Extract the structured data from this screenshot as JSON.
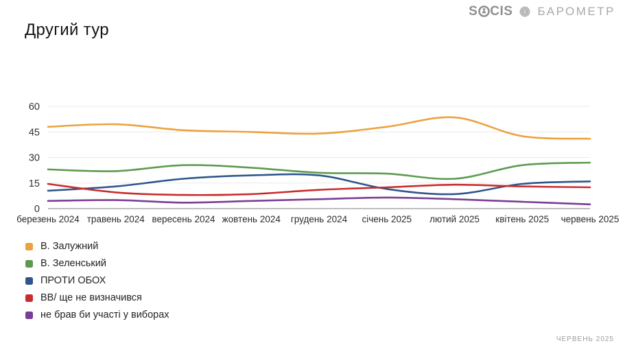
{
  "header": {
    "logo_part1": "S",
    "logo_part2": "CIS",
    "logo_full": "SOCIS",
    "barometer": "БАРОМЕТР",
    "socis_color": "#8f8f8f",
    "barometer_color": "#a9a9a9"
  },
  "title": "Другий тур",
  "footer": {
    "note": "ЧЕРВЕНЬ 2025"
  },
  "icons": {
    "person-in-circle-icon": "stylized person inside ring (letter O of SOCIS)",
    "coin-icon": "round gray coin emblem"
  },
  "chart_data": {
    "type": "line",
    "smooth": true,
    "title": "Другий тур",
    "xlabel": "",
    "ylabel": "",
    "ylim": [
      0,
      60
    ],
    "y_ticks": [
      0,
      15,
      30,
      45,
      60
    ],
    "grid": true,
    "grid_color": "#e8e8e8",
    "axis_color": "#7d7d7d",
    "legend_position": "bottom-left",
    "categories": [
      "березень 2024",
      "травень 2024",
      "вересень 2024",
      "жовтень 2024",
      "грудень 2024",
      "січень 2025",
      "лютий 2025",
      "квітень 2025",
      "червень 2025"
    ],
    "series": [
      {
        "name": "В. Залужний",
        "color": "#eca23d",
        "values": [
          48,
          49.5,
          46,
          45,
          44,
          48,
          53.5,
          42.5,
          41
        ]
      },
      {
        "name": "В. Зеленський",
        "color": "#5c9b4f",
        "values": [
          23,
          22,
          25.5,
          24,
          21,
          20.5,
          17.5,
          25.5,
          27
        ]
      },
      {
        "name": "ПРОТИ ОБОХ",
        "color": "#2f568c",
        "values": [
          10.5,
          13,
          17.5,
          19.5,
          19.5,
          11.5,
          8.5,
          14.5,
          16
        ]
      },
      {
        "name": "ВВ/ ще не визначився",
        "color": "#c92c2c",
        "values": [
          14.5,
          9.5,
          8,
          8.5,
          11,
          12.5,
          14,
          13,
          12.5
        ]
      },
      {
        "name": "не брав би участі у виборах",
        "color": "#7a3d91",
        "values": [
          4.5,
          5,
          3.5,
          4.5,
          5.5,
          6.5,
          5.5,
          4,
          2.5
        ]
      }
    ]
  }
}
